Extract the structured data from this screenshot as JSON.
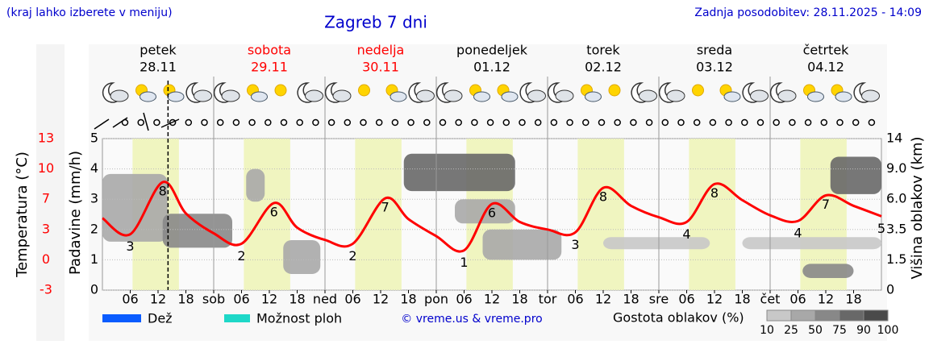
{
  "chart_data": {
    "type": "weather",
    "note_menu": "(kraj lahko izberete v meniju)",
    "title": "Zagreb 7 dni",
    "updated": "Zadnja posodobitev: 28.11.2025 - 14:09",
    "days": [
      {
        "name": "petek",
        "date": "28.11",
        "color": "#000000"
      },
      {
        "name": "sobota",
        "date": "29.11",
        "color": "#ff0000"
      },
      {
        "name": "nedelja",
        "date": "30.11",
        "color": "#ff0000"
      },
      {
        "name": "ponedeljek",
        "date": "01.12",
        "color": "#000000"
      },
      {
        "name": "torek",
        "date": "02.12",
        "color": "#000000"
      },
      {
        "name": "sreda",
        "date": "03.12",
        "color": "#000000"
      },
      {
        "name": "četrtek",
        "date": "04.12",
        "color": "#000000"
      }
    ],
    "xlim": [
      0,
      168
    ],
    "xticks": [
      {
        "value": 6,
        "label": "06"
      },
      {
        "value": 12,
        "label": "12"
      },
      {
        "value": 18,
        "label": "18"
      },
      {
        "value": 24,
        "label": "sob"
      },
      {
        "value": 30,
        "label": "06"
      },
      {
        "value": 36,
        "label": "12"
      },
      {
        "value": 42,
        "label": "18"
      },
      {
        "value": 48,
        "label": "ned"
      },
      {
        "value": 54,
        "label": "06"
      },
      {
        "value": 60,
        "label": "12"
      },
      {
        "value": 66,
        "label": "18"
      },
      {
        "value": 72,
        "label": "pon"
      },
      {
        "value": 78,
        "label": "06"
      },
      {
        "value": 84,
        "label": "12"
      },
      {
        "value": 90,
        "label": "18"
      },
      {
        "value": 96,
        "label": "tor"
      },
      {
        "value": 102,
        "label": "06"
      },
      {
        "value": 108,
        "label": "12"
      },
      {
        "value": 114,
        "label": "18"
      },
      {
        "value": 120,
        "label": "sre"
      },
      {
        "value": 126,
        "label": "06"
      },
      {
        "value": 132,
        "label": "12"
      },
      {
        "value": 138,
        "label": "18"
      },
      {
        "value": 144,
        "label": "čet"
      },
      {
        "value": 150,
        "label": "06"
      },
      {
        "value": 156,
        "label": "12"
      },
      {
        "value": 162,
        "label": "18"
      }
    ],
    "ylabel": "Padavine (mm/h)",
    "ylim": [
      0,
      5
    ],
    "yticks": [
      0,
      1,
      2,
      3,
      4,
      5
    ],
    "temp_label": "Temperatura (°C)",
    "temp_color": "#ff0000",
    "temp_lim": [
      -3,
      13
    ],
    "temp_ticks": [
      {
        "value": -3,
        "label": "-3"
      },
      {
        "value": 0.2,
        "label": "0"
      },
      {
        "value": 3.4,
        "label": "3"
      },
      {
        "value": 6.6,
        "label": "7"
      },
      {
        "value": 9.8,
        "label": "10"
      },
      {
        "value": 13,
        "label": "13"
      }
    ],
    "y2label": "Višina oblakov (km)",
    "y2ticks": [
      0,
      1.5,
      3.5,
      {
        "value": 6,
        "label": "6.0"
      },
      {
        "value": 9,
        "label": "9.0"
      },
      14
    ],
    "daylight": [
      6.5,
      16.5
    ],
    "daylight_color": "#f0f5c0",
    "now_hour": 14.15,
    "temperature": {
      "hours": [
        0,
        6,
        13,
        18,
        24,
        30,
        37,
        42,
        48,
        54,
        61,
        66,
        72,
        78,
        84,
        90,
        96,
        102,
        108,
        114,
        120,
        126,
        132,
        138,
        144,
        150,
        156,
        162,
        168
      ],
      "values": [
        4.6,
        2.9,
        8.4,
        5.1,
        3.0,
        1.9,
        6.2,
        3.6,
        2.3,
        1.9,
        6.7,
        4.5,
        2.7,
        1.2,
        6.1,
        4.2,
        3.4,
        3.1,
        7.8,
        5.9,
        4.7,
        4.2,
        8.2,
        6.5,
        4.9,
        4.3,
        7.0,
        5.9,
        4.8
      ]
    },
    "extremes": {
      "hours": [
        6,
        13,
        30,
        37,
        54,
        61,
        78,
        84,
        102,
        108,
        126,
        132,
        150,
        156,
        168
      ],
      "values": [
        3,
        8,
        2,
        6,
        2,
        7,
        1,
        6,
        3,
        8,
        4,
        8,
        4,
        7,
        5
      ]
    },
    "clouds": [
      {
        "h0": 0,
        "h1": 14,
        "km0": 2.7,
        "km1": 8.5,
        "density": 50
      },
      {
        "h0": 13,
        "h1": 28,
        "km0": 2.3,
        "km1": 4.8,
        "density": 75
      },
      {
        "h0": 31,
        "h1": 35,
        "km0": 5.8,
        "km1": 9,
        "density": 50
      },
      {
        "h0": 39,
        "h1": 47,
        "km0": 0.8,
        "km1": 2.8,
        "density": 50
      },
      {
        "h0": 65,
        "h1": 89,
        "km0": 6.8,
        "km1": 11.5,
        "density": 90
      },
      {
        "h0": 76,
        "h1": 89,
        "km0": 4,
        "km1": 6,
        "density": 50
      },
      {
        "h0": 82,
        "h1": 99,
        "km0": 1.5,
        "km1": 3.5,
        "density": 50
      },
      {
        "h0": 108,
        "h1": 131,
        "km0": 2.2,
        "km1": 3,
        "density": 25
      },
      {
        "h0": 138,
        "h1": 168,
        "km0": 2.2,
        "km1": 3,
        "density": 25
      },
      {
        "h0": 157,
        "h1": 168,
        "km0": 6.5,
        "km1": 11,
        "density": 90
      },
      {
        "h0": 151,
        "h1": 162,
        "km0": 0.6,
        "km1": 1.3,
        "density": 75
      }
    ],
    "legend": [
      {
        "name": "Dež",
        "color": "#0a5cff"
      },
      {
        "name": "Možnost ploh",
        "color": "#1ed8c8"
      }
    ],
    "copyright": "© vreme.us & vreme.pro",
    "cloud_legend": "Gostota oblakov (%)",
    "cloud_scale": {
      "values": [
        10,
        25,
        50,
        75,
        90,
        100
      ],
      "colors": [
        "#e0e0e0",
        "#c8c8c8",
        "#a8a8a8",
        "#888888",
        "#686868",
        "#4a4a4a"
      ]
    }
  }
}
